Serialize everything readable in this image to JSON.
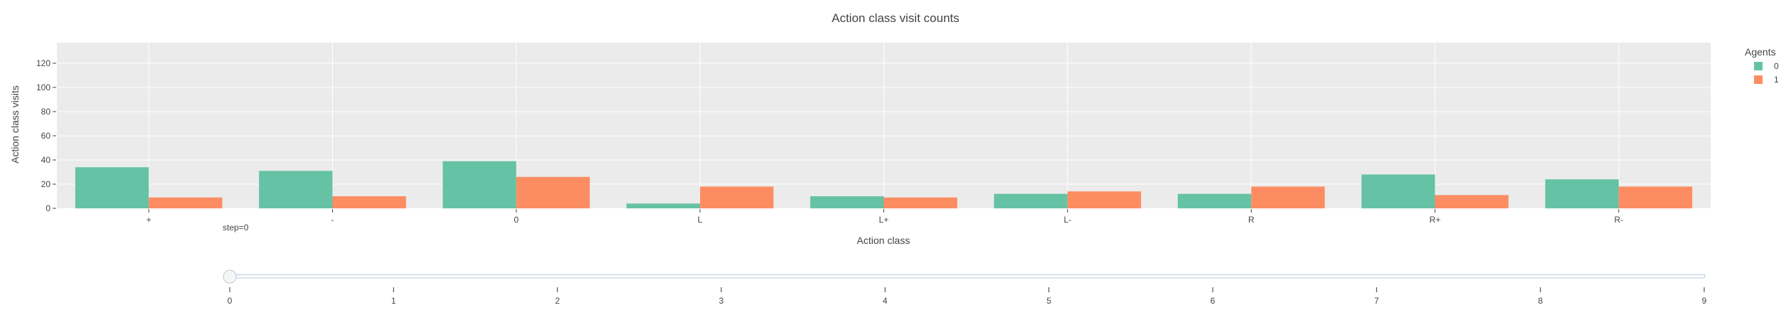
{
  "chart_data": {
    "type": "bar",
    "title": "Action class visit counts",
    "xlabel": "Action class",
    "ylabel": "Action class visits",
    "categories": [
      "+",
      "-",
      "0",
      "L",
      "L+",
      "L-",
      "R",
      "R+",
      "R-"
    ],
    "series": [
      {
        "name": "0",
        "color": "#66c2a5",
        "values": [
          34,
          31,
          39,
          4,
          10,
          12,
          12,
          28,
          24
        ]
      },
      {
        "name": "1",
        "color": "#fc8d62",
        "values": [
          9,
          10,
          26,
          18,
          9,
          14,
          18,
          11,
          18
        ]
      }
    ],
    "ylim": [
      0,
      137
    ],
    "yticks": [
      0,
      20,
      40,
      60,
      80,
      100,
      120
    ],
    "grid": true,
    "legend": {
      "title": "Agents",
      "placement": "top-right"
    }
  },
  "slider": {
    "label": "step=0",
    "value": 0,
    "ticks": [
      "0",
      "1",
      "2",
      "3",
      "4",
      "5",
      "6",
      "7",
      "8",
      "9"
    ]
  }
}
